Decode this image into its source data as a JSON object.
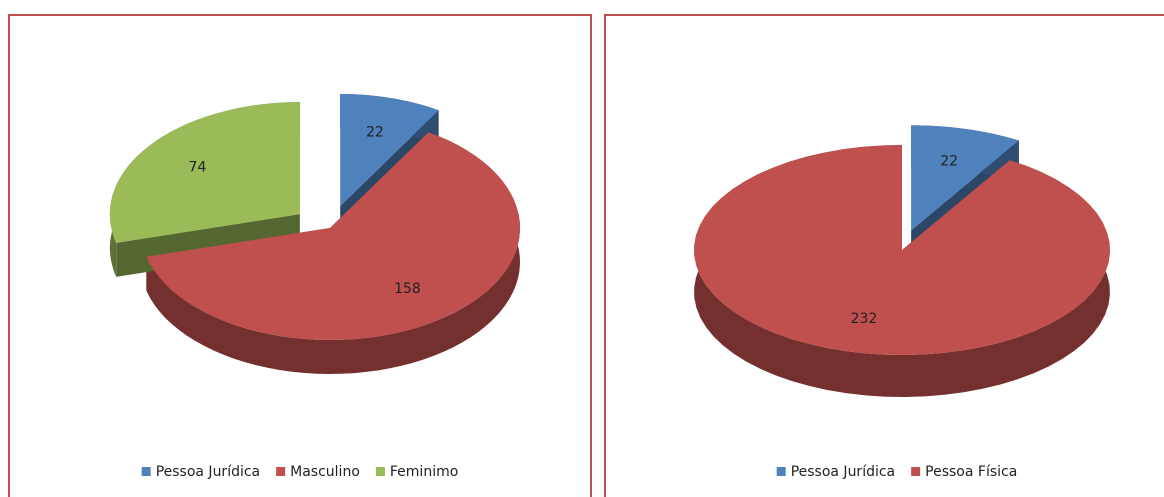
{
  "chart_data": [
    {
      "type": "pie3d",
      "categories": [
        "Pessoa Jurídica",
        "Masculino",
        "Feminimo"
      ],
      "values": [
        22,
        158,
        74
      ],
      "colors": [
        "#4f81bd",
        "#c0504d",
        "#9bbb59"
      ],
      "exploded": [
        true,
        false,
        true
      ],
      "legend": "bottom"
    },
    {
      "type": "pie3d",
      "categories": [
        "Pessoa Jurídica",
        "Pessoa Física"
      ],
      "values": [
        22,
        232
      ],
      "colors": [
        "#4f81bd",
        "#c0504d"
      ],
      "exploded": [
        true,
        false
      ],
      "legend": "bottom"
    }
  ]
}
